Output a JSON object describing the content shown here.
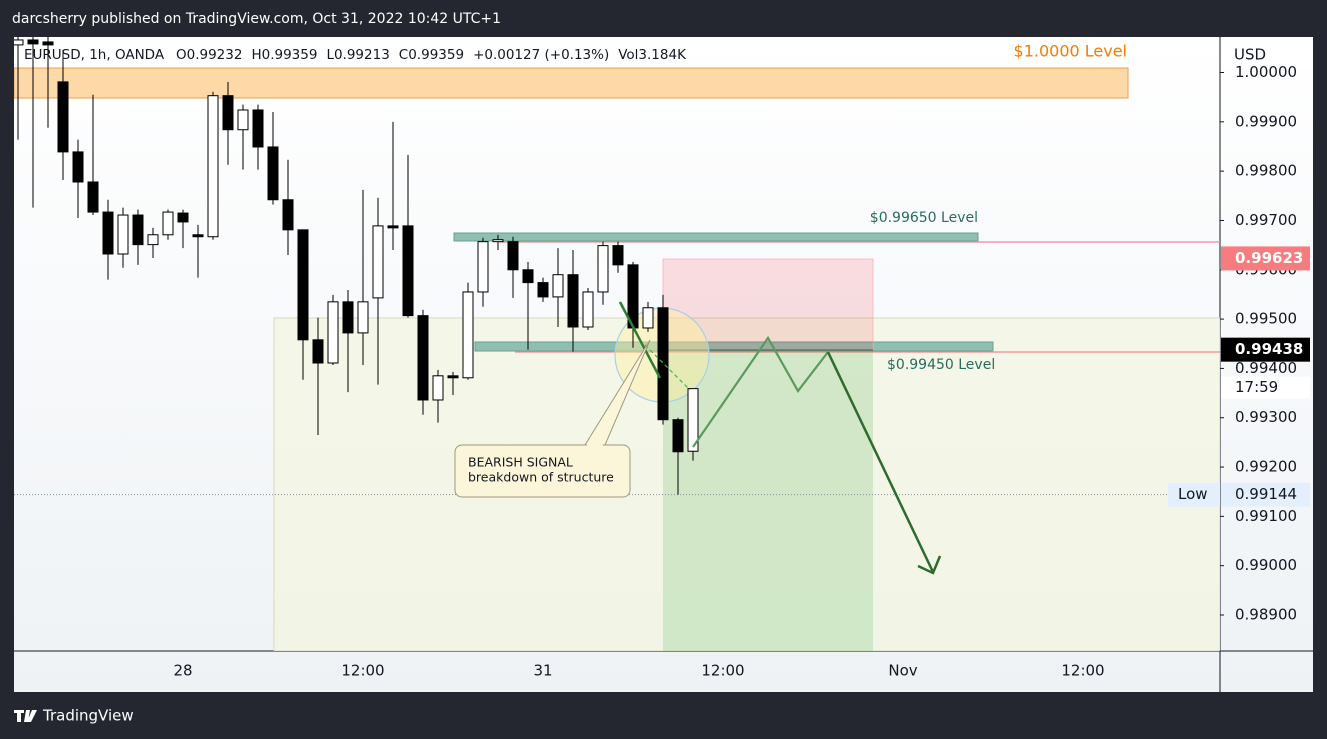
{
  "header": {
    "publisher": "darcsherry published on TradingView.com, Oct 31, 2022 10:42 UTC+1"
  },
  "footer": {
    "brand": "TradingView"
  },
  "chart_data": {
    "type": "candlestick",
    "title": "EURUSD, 1h, OANDA",
    "info": [
      "O0.99232",
      "H0.99359",
      "L0.99213",
      "C0.99359",
      "+0.00127 (+0.13%)",
      "Vol3.184K"
    ],
    "y_axis_label": "USD",
    "up_color": "#ffffff",
    "down_color": "#000000",
    "categories": [
      null,
      null,
      null,
      null,
      null,
      null,
      null,
      null,
      null,
      null,
      null,
      "28",
      null,
      null,
      null,
      null,
      null,
      null,
      null,
      null,
      null,
      null,
      null,
      "12:00",
      null,
      null,
      null,
      null,
      null,
      null,
      null,
      null,
      null,
      null,
      null,
      "31",
      null,
      null,
      null,
      null,
      null,
      null,
      null,
      null,
      null,
      null,
      null,
      "12:00",
      null,
      null,
      null,
      null,
      null,
      null,
      null,
      null,
      null,
      null,
      null,
      "Nov",
      null,
      null,
      null,
      null,
      null,
      null,
      null,
      null,
      null,
      null,
      null,
      "12:00",
      null,
      null,
      null,
      null,
      null,
      null,
      null,
      null,
      null
    ],
    "open": [
      1.00056,
      1.00066,
      1.00062,
      0.99981,
      0.99839,
      0.99778,
      0.99717,
      0.99632,
      0.99711,
      0.99651,
      0.99671,
      0.99715,
      0.99671,
      0.99667,
      0.99953,
      0.99884,
      0.99924,
      0.99849,
      0.99742,
      0.99681,
      0.99458,
      0.99411,
      0.99535,
      0.99472,
      0.99543,
      0.99689,
      0.99689,
      0.99507,
      0.99336,
      0.99385,
      0.99381,
      0.99555,
      0.99657,
      0.99657,
      0.996,
      0.99574,
      0.99545,
      0.9959,
      0.99484,
      0.99555,
      0.99649,
      0.9961,
      0.99482,
      0.99523,
      0.99296,
      0.99232,
      null,
      null,
      null,
      null,
      null,
      null,
      null,
      null,
      null,
      null,
      null,
      null,
      null,
      null,
      null,
      null,
      null,
      null,
      null,
      null,
      null,
      null,
      null,
      null,
      null,
      null,
      null,
      null,
      null,
      null,
      null,
      null,
      null,
      null,
      null
    ],
    "high": [
      1.00072,
      1.00072,
      1.00072,
      1.00046,
      0.99864,
      0.99955,
      0.99742,
      0.99726,
      0.99722,
      0.99685,
      0.99722,
      0.99722,
      0.99691,
      0.99961,
      0.99981,
      0.99935,
      0.99935,
      0.9992,
      0.99823,
      0.99681,
      0.99503,
      0.99549,
      0.99559,
      0.99762,
      0.99746,
      0.999,
      0.99833,
      0.99519,
      0.99397,
      0.99393,
      0.99574,
      0.99665,
      0.99671,
      0.99667,
      0.99616,
      0.99584,
      0.99644,
      0.9964,
      0.99563,
      0.99657,
      0.99657,
      0.99616,
      0.99535,
      0.99549,
      0.993,
      0.99359,
      null,
      null,
      null,
      null,
      null,
      null,
      null,
      null,
      null,
      null,
      null,
      null,
      null,
      null,
      null,
      null,
      null,
      null,
      null,
      null,
      null,
      null,
      null,
      null,
      null,
      null,
      null,
      null,
      null,
      null,
      null,
      null,
      null,
      null,
      null
    ],
    "low": [
      0.99864,
      0.99726,
      0.99888,
      0.99782,
      0.99705,
      0.99711,
      0.9958,
      0.99604,
      0.9961,
      0.99624,
      0.99661,
      0.99644,
      0.99584,
      0.99661,
      0.99813,
      0.99803,
      0.99803,
      0.99732,
      0.9963,
      0.99377,
      0.99265,
      0.99407,
      0.99352,
      0.99407,
      0.99367,
      0.9964,
      0.99503,
      0.99306,
      0.9929,
      0.99346,
      0.99377,
      0.99525,
      0.9964,
      0.99543,
      0.99438,
      0.99535,
      0.99484,
      0.99434,
      0.99478,
      0.99529,
      0.99594,
      0.99442,
      0.99474,
      0.99286,
      0.99144,
      0.99213,
      null,
      null,
      null,
      null,
      null,
      null,
      null,
      null,
      null,
      null,
      null,
      null,
      null,
      null,
      null,
      null,
      null,
      null,
      null,
      null,
      null,
      null,
      null,
      null,
      null,
      null,
      null,
      null,
      null,
      null,
      null,
      null,
      null,
      null,
      null
    ],
    "close": [
      1.00066,
      1.00058,
      1.00056,
      0.99839,
      0.99778,
      0.99717,
      0.99632,
      0.99711,
      0.99651,
      0.99671,
      0.99717,
      0.99697,
      0.99667,
      0.99953,
      0.99884,
      0.99924,
      0.99849,
      0.99742,
      0.99681,
      0.99458,
      0.99411,
      0.99535,
      0.99472,
      0.99535,
      0.99689,
      0.99685,
      0.99507,
      0.99336,
      0.99385,
      0.99381,
      0.99555,
      0.99657,
      0.99661,
      0.996,
      0.99574,
      0.99545,
      0.9959,
      0.99484,
      0.99555,
      0.99649,
      0.9961,
      0.99482,
      0.99523,
      0.99296,
      0.99231,
      0.99359,
      null,
      null,
      null,
      null,
      null,
      null,
      null,
      null,
      null,
      null,
      null,
      null,
      null,
      null,
      null,
      null,
      null,
      null,
      null,
      null,
      null,
      null,
      null,
      null,
      null,
      null,
      null,
      null,
      null,
      null,
      null,
      null,
      null,
      null,
      null
    ],
    "ylim": [
      0.98827,
      1.00072
    ],
    "yticks": [
      {
        "value": 0.989,
        "label": "0.98900"
      },
      {
        "value": 0.99,
        "label": "0.99000"
      },
      {
        "value": 0.991,
        "label": "0.99100"
      },
      {
        "value": 0.992,
        "label": "0.99200"
      },
      {
        "value": 0.993,
        "label": "0.99300"
      },
      {
        "value": 0.994,
        "label": "0.99400"
      },
      {
        "value": 0.995,
        "label": "0.99500"
      },
      {
        "value": 0.996,
        "label": "0.99600"
      },
      {
        "value": 0.997,
        "label": "0.99700"
      },
      {
        "value": 0.998,
        "label": "0.99800"
      },
      {
        "value": 0.999,
        "label": "0.99900"
      },
      {
        "value": 1.0,
        "label": "1.00000"
      }
    ],
    "price_labels": [
      0.99623,
      0.99438,
      0.99144
    ],
    "countdown": "17:59",
    "low_label": "Low",
    "annotations": [
      "$1.0000 Level",
      "$0.99650 Level",
      "$0.99450 Level",
      "BEARISH SIGNAL",
      "breakdown of structure"
    ]
  }
}
